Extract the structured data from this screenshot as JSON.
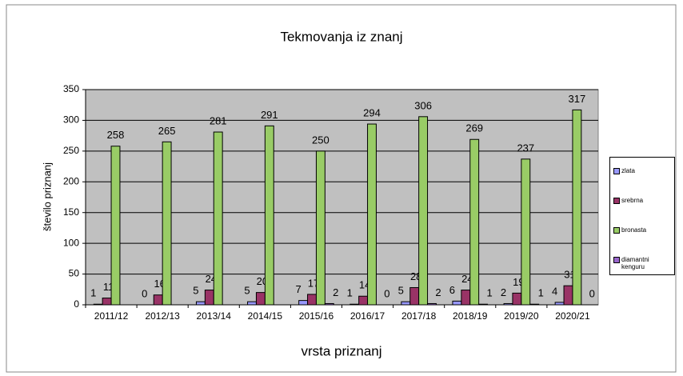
{
  "chart_data": {
    "type": "bar",
    "title": "Tekmovanja iz znanj",
    "x_label": "vrsta priznanj",
    "y_label": "število priznanj",
    "categories": [
      "2011/12",
      "2012/13",
      "2013/14",
      "2014/15",
      "2015/16",
      "2016/17",
      "2017/18",
      "2018/19",
      "2019/20",
      "2020/21"
    ],
    "series": [
      {
        "name": "zlata",
        "color": "#9999ff",
        "values": [
          1,
          0,
          5,
          5,
          7,
          1,
          5,
          6,
          2,
          4
        ]
      },
      {
        "name": "srebrna",
        "color": "#993366",
        "values": [
          11,
          16,
          24,
          20,
          17,
          14,
          28,
          24,
          19,
          31
        ]
      },
      {
        "name": "bronasta",
        "color": "#99cc66",
        "values": [
          258,
          265,
          281,
          291,
          250,
          294,
          306,
          269,
          237,
          317
        ]
      },
      {
        "name": "diamantni kenguru",
        "color": "#9966cc",
        "values": [
          null,
          null,
          null,
          null,
          2,
          0,
          2,
          1,
          1,
          0
        ]
      }
    ],
    "ylim": [
      0,
      350
    ],
    "yticks": [
      0,
      50,
      100,
      150,
      200,
      250,
      300,
      350
    ],
    "grid": true
  }
}
